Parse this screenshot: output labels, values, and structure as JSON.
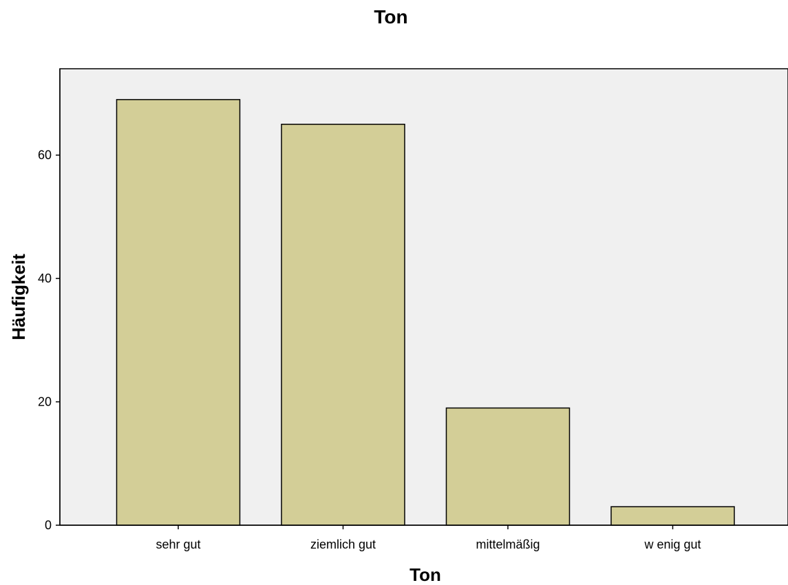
{
  "chart_data": {
    "type": "bar",
    "title": "Ton",
    "xlabel": "Ton",
    "ylabel": "Häufigkeit",
    "categories": [
      "sehr gut",
      "ziemlich gut",
      "mittelmäßig",
      "w enig gut"
    ],
    "values": [
      69,
      65,
      19,
      3
    ],
    "ylim": [
      0,
      74
    ],
    "yticks": [
      "0",
      "20",
      "40",
      "60"
    ],
    "grid": false,
    "legend": "none",
    "colors": {
      "bar_fill": "#d3ce97",
      "bar_stroke": "#000000",
      "plot_background": "#f0f0f0",
      "page_background": "#ffffff"
    }
  }
}
